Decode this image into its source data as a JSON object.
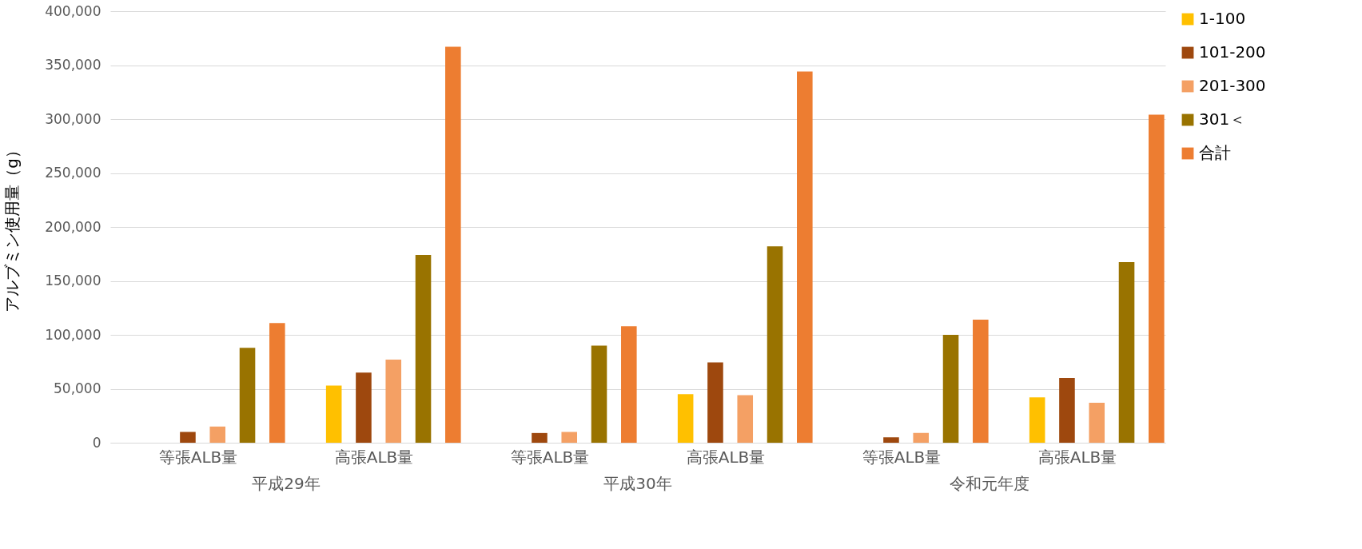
{
  "chart_data": {
    "type": "bar",
    "ylabel": "アルブミン使用量（g）",
    "categories": [
      "等張ALB量",
      "高張ALB量",
      "等張ALB量",
      "高張ALB量",
      "等張ALB量",
      "高張ALB量"
    ],
    "annotations": [
      "平成29年",
      "平成30年",
      "令和元年度"
    ],
    "series": [
      {
        "name": "1-100",
        "color": "#ffc000",
        "values": [
          0,
          53000,
          0,
          45000,
          0,
          42000
        ]
      },
      {
        "name": "101-200",
        "color": "#9e480e",
        "values": [
          10000,
          65000,
          9000,
          74500,
          5000,
          60000
        ]
      },
      {
        "name": "201-300",
        "color": "#f4a064",
        "values": [
          15000,
          77000,
          10000,
          44000,
          9000,
          37000
        ]
      },
      {
        "name": "301＜",
        "color": "#997300",
        "values": [
          88000,
          174000,
          90000,
          182000,
          100000,
          167500
        ]
      },
      {
        "name": "合計",
        "color": "#ed7d31",
        "values": [
          111000,
          367000,
          108000,
          344000,
          114000,
          304000
        ]
      }
    ],
    "ylim": [
      0,
      400000
    ],
    "yticks": [
      0,
      {
        "value": 50000,
        "label": "50,000"
      },
      {
        "value": 100000,
        "label": "100,000"
      },
      {
        "value": 150000,
        "label": "150,000"
      },
      {
        "value": 200000,
        "label": "200,000"
      },
      {
        "value": 250000,
        "label": "250,000"
      },
      {
        "value": 300000,
        "label": "300,000"
      },
      {
        "value": 350000,
        "label": "350,000"
      },
      {
        "value": 400000,
        "label": "400,000"
      }
    ],
    "grid": "y",
    "legend": "right"
  }
}
